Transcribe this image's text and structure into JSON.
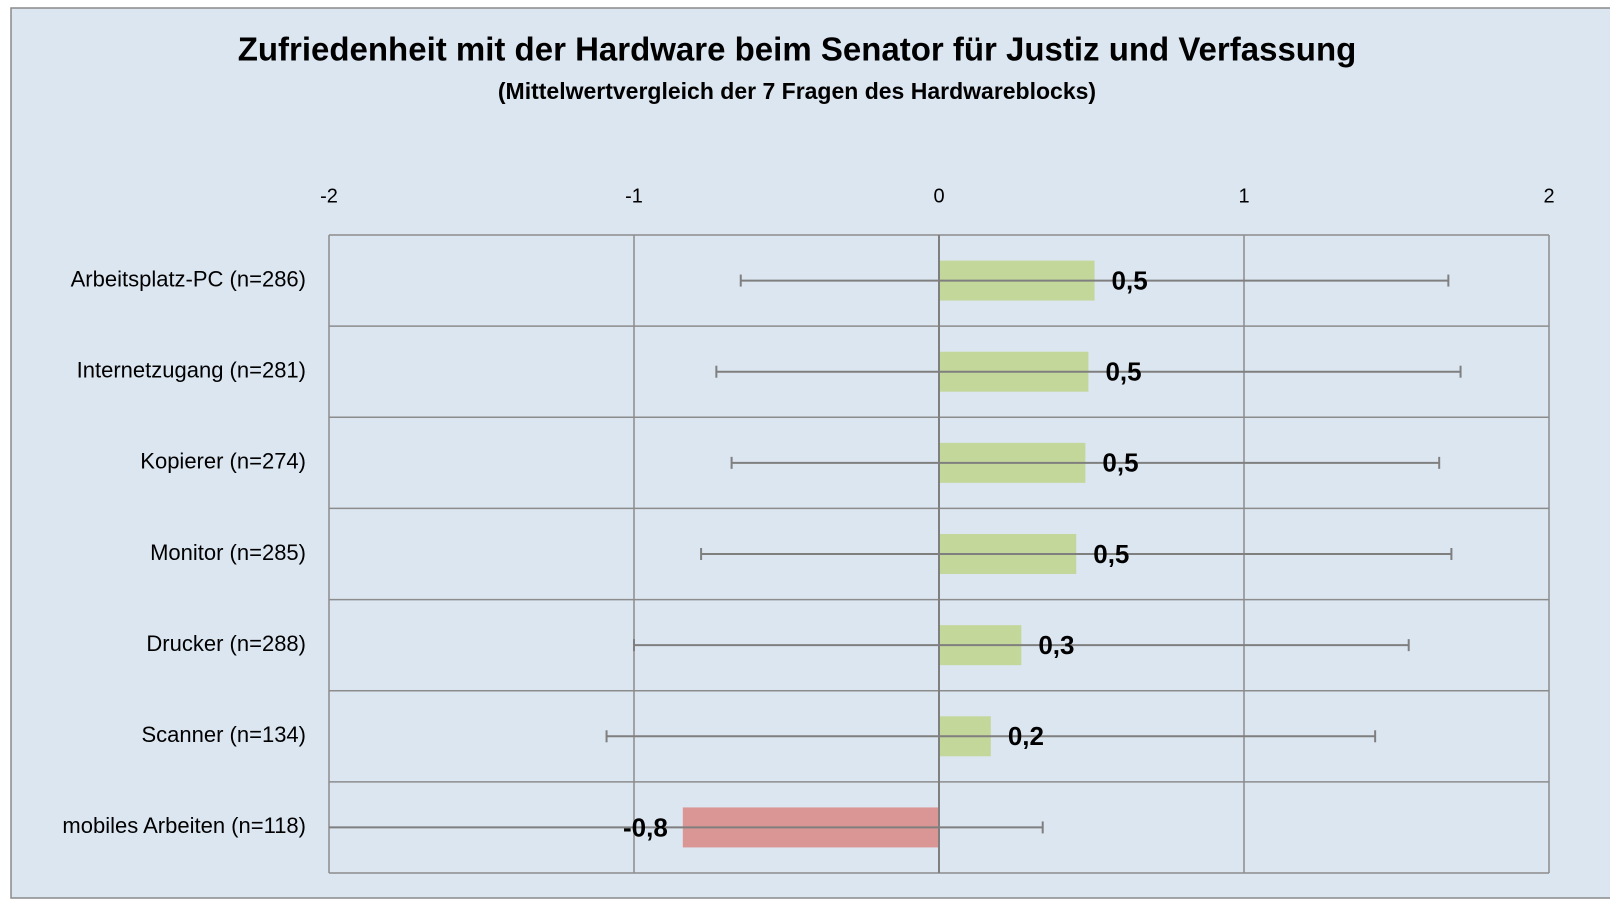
{
  "chart_data": {
    "type": "bar",
    "orientation": "horizontal",
    "title": "Zufriedenheit mit der Hardware beim Senator für Justiz und Verfassung",
    "subtitle": "(Mittelwertvergleich der 7 Fragen des Hardwareblocks)",
    "categories": [
      "Arbeitsplatz-PC (n=286)",
      "Internetzugang (n=281)",
      "Kopierer (n=274)",
      "Monitor (n=285)",
      "Drucker (n=288)",
      "Scanner (n=134)",
      "mobiles Arbeiten (n=118)"
    ],
    "values": [
      0.51,
      0.49,
      0.48,
      0.45,
      0.27,
      0.17,
      -0.84
    ],
    "value_labels": [
      "0,5",
      "0,5",
      "0,5",
      "0,5",
      "0,3",
      "0,2",
      "-0,8"
    ],
    "errors": [
      1.16,
      1.22,
      1.16,
      1.23,
      1.27,
      1.26,
      1.18
    ],
    "colors": [
      "#c4d79b",
      "#c4d79b",
      "#c4d79b",
      "#c4d79b",
      "#c4d79b",
      "#c4d79b",
      "#da9694"
    ],
    "xlim": [
      -2,
      2
    ],
    "xticks": [
      -2,
      -1,
      0,
      1,
      2
    ],
    "grid": true
  }
}
